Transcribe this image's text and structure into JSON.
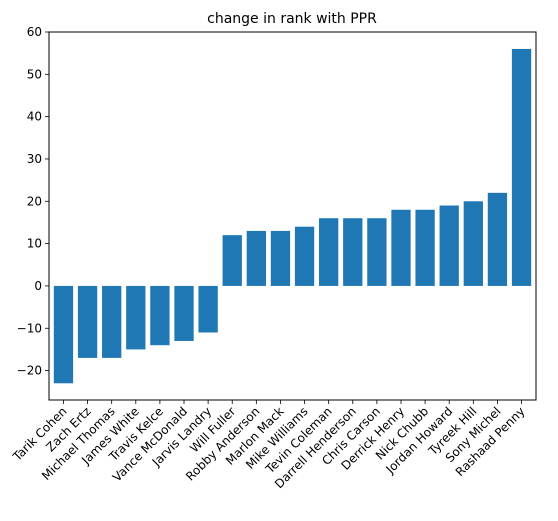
{
  "chart_data": {
    "type": "bar",
    "title": "change in rank with PPR",
    "xlabel": "",
    "ylabel": "",
    "categories": [
      "Tarik Cohen",
      "Zach Ertz",
      "Michael Thomas",
      "James White",
      "Travis Kelce",
      "Vance McDonald",
      "Jarvis Landry",
      "Will Fuller",
      "Robby Anderson",
      "Marlon Mack",
      "Mike Williams",
      "Tevin Coleman",
      "Darrell Henderson",
      "Chris Carson",
      "Derrick Henry",
      "Nick Chubb",
      "Jordan Howard",
      "Tyreek Hill",
      "Sony Michel",
      "Rashaad Penny"
    ],
    "values": [
      -23,
      -17,
      -17,
      -15,
      -14,
      -13,
      -11,
      12,
      13,
      13,
      14,
      16,
      16,
      16,
      18,
      18,
      19,
      20,
      22,
      56
    ],
    "ylim": [
      -26.95,
      60
    ],
    "yticks": [
      -20,
      -10,
      0,
      10,
      20,
      30,
      40,
      50,
      60
    ],
    "bar_color": "#1f77b4",
    "grid": false,
    "xtick_rotation": "45"
  }
}
